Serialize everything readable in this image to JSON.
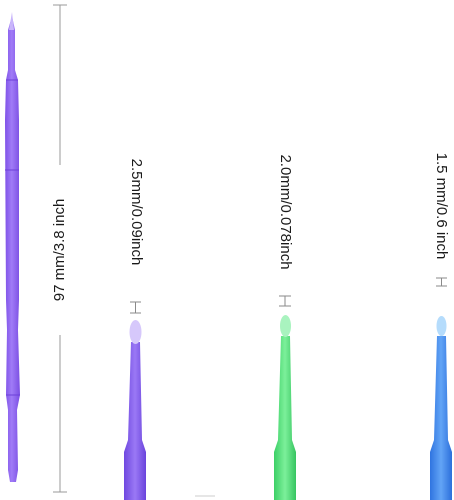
{
  "dimension_labels": {
    "total_length": "97 mm/3.8 inch",
    "tip_large": "2.5mm/0.09inch",
    "tip_medium": "2.0mm/0.078inch",
    "tip_small": "1.5 mm/0.6 inch"
  },
  "colors": {
    "long_applicator": "#8b5cf0",
    "large_applicator": "#7b55ea",
    "medium_applicator": "#4fe07a",
    "small_applicator": "#3a86ee",
    "dimension_line": "#9a9a9a"
  }
}
